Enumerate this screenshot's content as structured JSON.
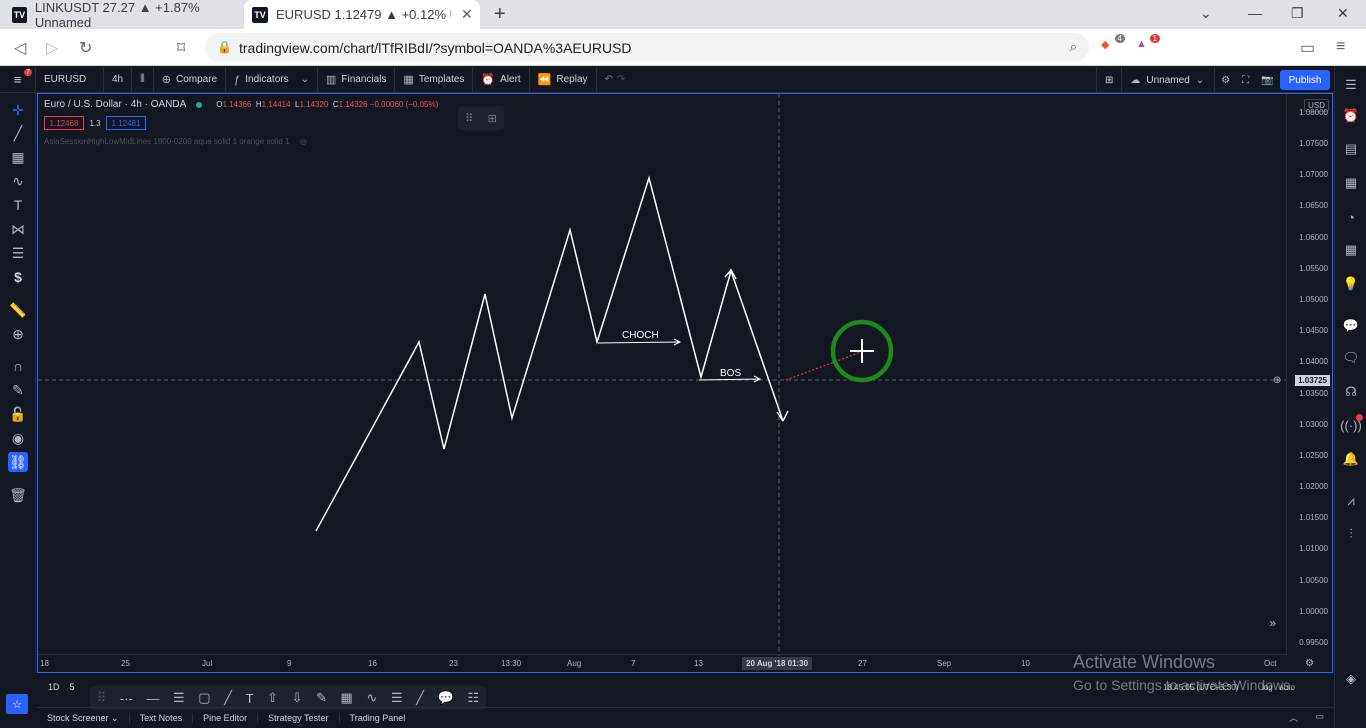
{
  "browser": {
    "tabs": [
      {
        "title": "LINKUSDT 27.27 ▲ +1.87% Unnamed",
        "icon": "tradingview-logo-icon",
        "active": false
      },
      {
        "title": "EURUSD 1.12479 ▲ +0.12% Unnam",
        "icon": "tradingview-logo-icon",
        "active": true
      }
    ],
    "url": "tradingview.com/chart/lTfRIBdI/?symbol=OANDA%3AEURUSD",
    "brave_badge": "4",
    "rewards_badge": "1"
  },
  "toolbar": {
    "symbol": "EURUSD",
    "interval": "4h",
    "compare": "Compare",
    "indicators": "Indicators",
    "financials": "Financials",
    "templates": "Templates",
    "alert": "Alert",
    "replay": "Replay",
    "layout_name": "Unnamed",
    "publish": "Publish",
    "menu_badge": "7"
  },
  "legend": {
    "title": "Euro / U.S. Dollar · 4h · OANDA",
    "o_label": "O",
    "o_value": "1.14366",
    "h_label": "H",
    "h_value": "1.14414",
    "l_label": "L",
    "l_value": "1.14320",
    "c_label": "C",
    "c_value": "1.14326 −0.00060 (−0.05%)",
    "bid": "1.12468",
    "spread": "1.3",
    "ask": "1.12481",
    "indicator_text": "AsiaSessionHighLowMidLines 1800-0200 aqua solid 1 orange solid 1"
  },
  "chart": {
    "currency": "USD",
    "current_price": "1.03725",
    "y_ticks": [
      "1.08000",
      "1.07500",
      "1.07000",
      "1.06500",
      "1.06000",
      "1.05500",
      "1.05000",
      "1.04500",
      "1.04000",
      "1.03500",
      "1.03000",
      "1.02500",
      "1.02000",
      "1.01500",
      "1.01000",
      "1.00500",
      "1.00000",
      "0.99500"
    ],
    "x_ticks": [
      {
        "label": "18"
      },
      {
        "label": "25"
      },
      {
        "label": "Jul"
      },
      {
        "label": "9"
      },
      {
        "label": "16"
      },
      {
        "label": "23"
      },
      {
        "label": "13:30"
      },
      {
        "label": "Aug"
      },
      {
        "label": "7"
      },
      {
        "label": "13"
      },
      {
        "label": "27"
      },
      {
        "label": "Sep"
      },
      {
        "label": "10"
      },
      {
        "label": "Oct"
      }
    ],
    "crosshair_x_label": "20 Aug '18   01:30",
    "annotations": {
      "choch": "CHOCH",
      "bos": "BOS"
    },
    "line_color": "#ffffff",
    "cursor_ring_color": "#1b8a1b"
  },
  "bottom": {
    "timeframes": [
      "1D",
      "5"
    ],
    "tabs": [
      "Stock Screener",
      "Text Notes",
      "Pine Editor",
      "Strategy Tester",
      "Trading Panel"
    ],
    "clock": "18:45:05 (UTC+5:30)",
    "log": "log",
    "auto": "auto"
  },
  "watermark": {
    "line1": "Activate Windows",
    "line2": "Go to Settings to activate Windows."
  }
}
